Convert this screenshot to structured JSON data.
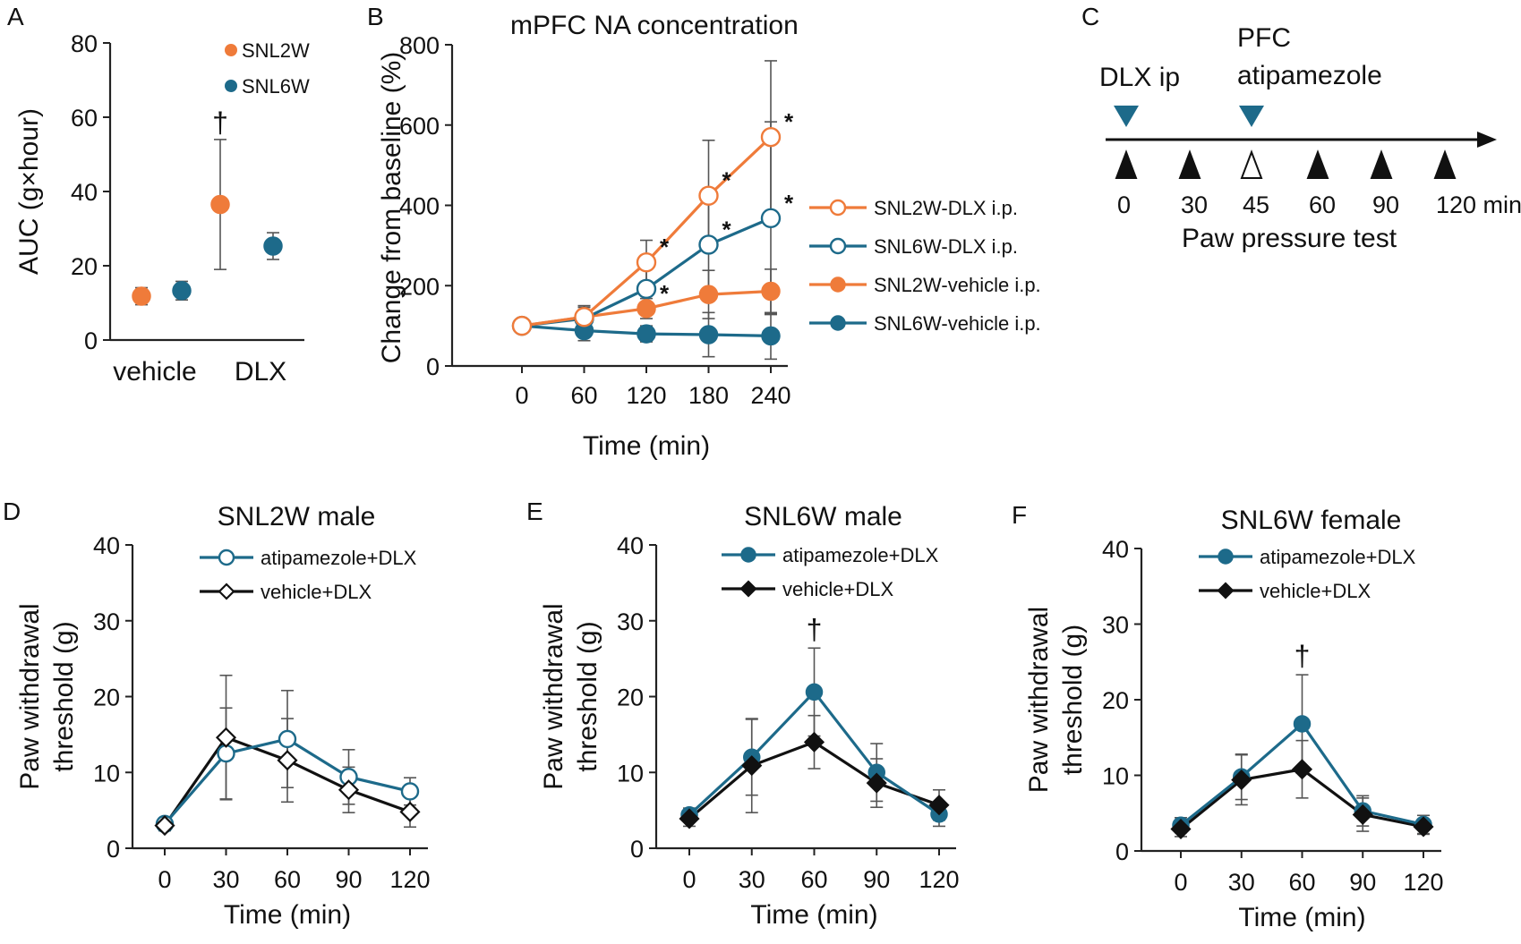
{
  "chart_data": [
    {
      "panel": "A",
      "type": "scatter",
      "categories": [
        "vehicle",
        "DLX"
      ],
      "ylabel": "AUC (g×hour)",
      "ylim": [
        0,
        80
      ],
      "yticks": [
        0,
        20,
        40,
        60,
        80
      ],
      "legend": {
        "position": "top-right",
        "entries": [
          "SNL2W",
          "SNL6W"
        ]
      },
      "series": [
        {
          "name": "SNL2W",
          "color": "#ef7b3a",
          "values": [
            11.8,
            36.5
          ],
          "err": [
            2.3,
            17.5
          ]
        },
        {
          "name": "SNL6W",
          "color": "#1d6a8a",
          "values": [
            13.3,
            25.3
          ],
          "err": [
            2.5,
            3.6
          ]
        }
      ],
      "annotations": [
        {
          "text": "†",
          "category": "DLX",
          "series": "SNL2W"
        }
      ]
    },
    {
      "panel": "B",
      "type": "line",
      "title": "mPFC NA concentration",
      "xlabel": "Time (min)",
      "ylabel": "Change from baseline (%)",
      "x": [
        0,
        60,
        120,
        180,
        240
      ],
      "xlim": [
        0,
        240
      ],
      "ylim": [
        0,
        800
      ],
      "yticks": [
        0,
        200,
        400,
        600,
        800
      ],
      "legend": {
        "position": "right"
      },
      "series": [
        {
          "name": "SNL2W-DLX i.p.",
          "color": "#ef7b3a",
          "marker": "open",
          "values": [
            100,
            122,
            258,
            424,
            570
          ],
          "err": [
            8,
            28,
            55,
            138,
            190
          ],
          "stars": [
            false,
            false,
            true,
            true,
            true
          ]
        },
        {
          "name": "SNL6W-DLX i.p.",
          "color": "#1d6a8a",
          "marker": "open",
          "values": [
            100,
            118,
            192,
            302,
            368
          ],
          "err": [
            8,
            28,
            50,
            140,
            240
          ],
          "stars": [
            false,
            false,
            false,
            true,
            true
          ]
        },
        {
          "name": "SNL2W-vehicle i.p.",
          "color": "#ef7b3a",
          "marker": "filled",
          "values": [
            100,
            122,
            143,
            178,
            186
          ],
          "err": [
            8,
            28,
            25,
            60,
            55
          ],
          "stars": [
            false,
            false,
            true,
            false,
            false
          ]
        },
        {
          "name": "SNL6W-vehicle i.p.",
          "color": "#1d6a8a",
          "marker": "filled",
          "values": [
            100,
            88,
            80,
            78,
            75
          ],
          "err": [
            8,
            25,
            20,
            55,
            58
          ],
          "stars": [
            false,
            false,
            false,
            false,
            false
          ]
        }
      ]
    },
    {
      "panel": "D",
      "type": "line",
      "title": "SNL2W male",
      "xlabel": "Time (min)",
      "ylabel_lines": [
        "Paw withdrawal",
        "threshold (g)"
      ],
      "x": [
        0,
        30,
        60,
        90,
        120
      ],
      "xlim": [
        0,
        120
      ],
      "ylim": [
        0,
        40
      ],
      "yticks": [
        0,
        10,
        20,
        30,
        40
      ],
      "legend": {
        "position": "top-right"
      },
      "series": [
        {
          "name": "atipamezole+DLX",
          "color": "#1d6a8a",
          "marker": "circle-open",
          "values": [
            3.2,
            12.5,
            14.4,
            9.4,
            7.5
          ],
          "err": [
            0.8,
            6.0,
            6.4,
            3.6,
            1.8
          ]
        },
        {
          "name": "vehicle+DLX",
          "color": "#111111",
          "marker": "diamond-open",
          "values": [
            3.0,
            14.6,
            11.6,
            7.7,
            4.8
          ],
          "err": [
            0.7,
            8.2,
            5.5,
            3.0,
            2.0
          ]
        }
      ],
      "annotations": []
    },
    {
      "panel": "E",
      "type": "line",
      "title": "SNL6W male",
      "xlabel": "Time (min)",
      "ylabel_lines": [
        "Paw withdrawal",
        "threshold (g)"
      ],
      "x": [
        0,
        30,
        60,
        90,
        120
      ],
      "xlim": [
        0,
        120
      ],
      "ylim": [
        0,
        40
      ],
      "yticks": [
        0,
        10,
        20,
        30,
        40
      ],
      "legend": {
        "position": "top-right"
      },
      "series": [
        {
          "name": "atipamezole+DLX",
          "color": "#1d6a8a",
          "marker": "circle-filled",
          "values": [
            4.4,
            12.0,
            20.6,
            10.0,
            4.5
          ],
          "err": [
            0.9,
            5.0,
            5.8,
            3.8,
            1.6
          ]
        },
        {
          "name": "vehicle+DLX",
          "color": "#111111",
          "marker": "diamond-filled",
          "values": [
            3.9,
            10.9,
            14.0,
            8.6,
            5.7
          ],
          "err": [
            1.0,
            6.2,
            3.5,
            3.2,
            2.0
          ]
        }
      ],
      "annotations": [
        {
          "text": "†",
          "x": 60
        }
      ]
    },
    {
      "panel": "F",
      "type": "line",
      "title": "SNL6W female",
      "xlabel": "Time (min)",
      "ylabel_lines": [
        "Paw withdrawal",
        "threshold (g)"
      ],
      "x": [
        0,
        30,
        60,
        90,
        120
      ],
      "xlim": [
        0,
        120
      ],
      "ylim": [
        0,
        40
      ],
      "yticks": [
        0,
        10,
        20,
        30,
        40
      ],
      "legend": {
        "position": "top-right"
      },
      "series": [
        {
          "name": "atipamezole+DLX",
          "color": "#1d6a8a",
          "marker": "circle-filled",
          "values": [
            3.4,
            9.8,
            16.8,
            5.3,
            3.5
          ],
          "err": [
            1.0,
            3.0,
            6.5,
            2.0,
            1.2
          ]
        },
        {
          "name": "vehicle+DLX",
          "color": "#111111",
          "marker": "diamond-filled",
          "values": [
            2.9,
            9.4,
            10.8,
            4.8,
            3.2
          ],
          "err": [
            1.0,
            3.3,
            3.8,
            2.2,
            1.0
          ]
        }
      ],
      "annotations": [
        {
          "text": "†",
          "x": 60
        }
      ]
    }
  ],
  "timeline": {
    "panel": "C",
    "injections": [
      {
        "label": "DLX ip",
        "time": 0
      },
      {
        "label_lines": [
          "PFC",
          "atipamezole"
        ],
        "time": 45
      }
    ],
    "tests": [
      {
        "time": 0,
        "label": "0",
        "filled": true
      },
      {
        "time": 30,
        "label": "30",
        "filled": true
      },
      {
        "time": 45,
        "label": "45",
        "filled": false
      },
      {
        "time": 60,
        "label": "60",
        "filled": true
      },
      {
        "time": 90,
        "label": "90",
        "filled": true
      },
      {
        "time": 120,
        "label": "120 min",
        "filled": true
      }
    ],
    "caption": "Paw pressure test",
    "injection_color": "#1d6a8a"
  }
}
